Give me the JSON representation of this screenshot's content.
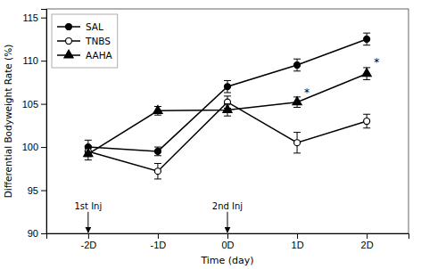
{
  "chart_data": {
    "type": "line",
    "xlabel": "Time (day)",
    "ylabel": "Differential Bodyweight Rate (%)",
    "x": [
      -2,
      -1,
      0,
      1,
      2
    ],
    "xlim": [
      -2.6,
      2.6
    ],
    "xticks": [
      {
        "value": -2,
        "label": "-2D"
      },
      {
        "value": -1,
        "label": "-1D"
      },
      {
        "value": 0,
        "label": "0D"
      },
      {
        "value": 1,
        "label": "1D"
      },
      {
        "value": 2,
        "label": "2D"
      }
    ],
    "ylim": [
      90,
      116
    ],
    "yticks": [
      90,
      95,
      100,
      105,
      110,
      115
    ],
    "grid": false,
    "legend": "upper left",
    "series": [
      {
        "name": "SAL",
        "color": "black",
        "marker": "circle",
        "line_style": "solid",
        "values": [
          100.0,
          99.5,
          107.0,
          109.5,
          112.5
        ],
        "errors": [
          0.8,
          0.5,
          0.7,
          0.7,
          0.7
        ]
      },
      {
        "name": "TNBS",
        "color": "black",
        "marker": "open-circle",
        "line_style": "solid",
        "values": [
          99.5,
          97.2,
          105.2,
          100.5,
          103.0
        ],
        "errors": [
          0.6,
          0.9,
          0.7,
          1.2,
          0.8
        ]
      },
      {
        "name": "AAHA",
        "color": "black",
        "marker": "triangle",
        "line_style": "solid",
        "values": [
          99.2,
          104.2,
          104.3,
          105.2,
          108.5
        ],
        "errors": [
          0.7,
          0.5,
          0.7,
          0.6,
          0.7
        ]
      }
    ],
    "annotations": [
      {
        "text": "1st Inj",
        "x": -2,
        "y": 92.8,
        "arrow": true
      },
      {
        "text": "2nd Inj",
        "x": 0,
        "y": 92.8,
        "arrow": true
      },
      {
        "text": "*",
        "x": 1,
        "y": 106.5,
        "arrow": false
      },
      {
        "text": "*",
        "x": 2,
        "y": 110.0,
        "arrow": false
      }
    ]
  }
}
